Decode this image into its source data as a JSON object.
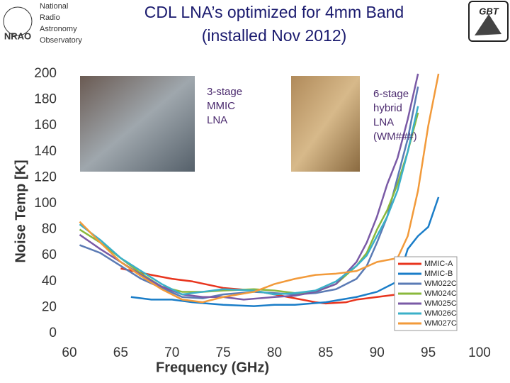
{
  "logos": {
    "nrao_lines": [
      "National",
      "Radio",
      "Astronomy",
      "Observatory"
    ],
    "nrao_abbr": "NRAO",
    "gbt": "GBT"
  },
  "chart_data": {
    "type": "line",
    "title": "CDL LNA’s optimized for 4mm Band",
    "subtitle": "(installed Nov 2012)",
    "x_label": "Frequency (GHz)",
    "y_label": "Noise Temp [K]",
    "xlim": [
      60,
      100
    ],
    "xticks": [
      60,
      65,
      70,
      75,
      80,
      85,
      90,
      95,
      100
    ],
    "ylim": [
      0,
      200
    ],
    "yticks": [
      0,
      20,
      40,
      60,
      80,
      100,
      120,
      140,
      160,
      180,
      200
    ],
    "grid": false,
    "legend": "lower right",
    "annotations": [
      [
        "3-stage",
        "MMIC",
        "LNA"
      ],
      [
        "6-stage",
        "hybrid",
        "LNA",
        "(WM###)"
      ]
    ],
    "series": [
      {
        "name": "MMIC-A",
        "color": "#e8351e",
        "x": [
          65,
          68,
          70,
          72,
          75,
          78,
          80,
          82,
          84,
          85,
          87,
          88,
          90,
          92,
          94
        ],
        "values": [
          50,
          45,
          42,
          40,
          35,
          33,
          30,
          27,
          24,
          23,
          24,
          26,
          28,
          30,
          32
        ]
      },
      {
        "name": "MMIC-B",
        "color": "#1a7dc8",
        "x": [
          66,
          68,
          70,
          72,
          75,
          78,
          80,
          82,
          85,
          88,
          90,
          92,
          93,
          94,
          95,
          96
        ],
        "values": [
          28,
          26,
          26,
          24,
          22,
          21,
          22,
          22,
          24,
          28,
          32,
          40,
          65,
          75,
          82,
          105
        ]
      },
      {
        "name": "WM022C",
        "color": "#5b7bb5",
        "x": [
          61,
          63,
          65,
          67,
          69,
          71,
          73,
          75,
          78,
          80,
          82,
          84,
          86,
          88,
          89,
          90,
          91,
          92,
          93,
          94
        ],
        "values": [
          68,
          62,
          52,
          42,
          35,
          28,
          27,
          30,
          32,
          31,
          30,
          31,
          34,
          42,
          52,
          70,
          90,
          120,
          150,
          190
        ]
      },
      {
        "name": "WM024C",
        "color": "#8ab83c",
        "x": [
          61,
          63,
          65,
          67,
          69,
          71,
          73,
          75,
          78,
          80,
          82,
          84,
          86,
          88,
          89,
          90,
          91,
          92,
          93,
          94
        ],
        "values": [
          80,
          70,
          58,
          46,
          36,
          32,
          32,
          33,
          34,
          33,
          31,
          32,
          38,
          52,
          62,
          80,
          95,
          115,
          140,
          170
        ]
      },
      {
        "name": "WM025C",
        "color": "#7a5aa6",
        "x": [
          61,
          63,
          65,
          67,
          69,
          71,
          73,
          75,
          77,
          80,
          82,
          84,
          86,
          88,
          89,
          90,
          91,
          92,
          93,
          94
        ],
        "values": [
          76,
          65,
          55,
          45,
          36,
          30,
          28,
          28,
          26,
          28,
          29,
          32,
          38,
          55,
          70,
          90,
          115,
          135,
          165,
          200
        ]
      },
      {
        "name": "WM026C",
        "color": "#3bb0c8",
        "x": [
          61,
          63,
          65,
          67,
          69,
          71,
          73,
          75,
          78,
          80,
          82,
          84,
          86,
          88,
          89,
          90,
          91,
          92,
          93,
          94
        ],
        "values": [
          84,
          72,
          58,
          48,
          38,
          30,
          32,
          34,
          33,
          30,
          31,
          33,
          40,
          52,
          60,
          75,
          90,
          110,
          140,
          175
        ]
      },
      {
        "name": "WM027C",
        "color": "#f29a3a",
        "x": [
          61,
          63,
          65,
          67,
          69,
          71,
          73,
          75,
          78,
          80,
          82,
          84,
          86,
          88,
          90,
          92,
          93,
          94,
          95,
          96
        ],
        "values": [
          86,
          70,
          55,
          44,
          34,
          26,
          24,
          28,
          32,
          38,
          42,
          45,
          46,
          48,
          55,
          58,
          75,
          110,
          160,
          200
        ]
      }
    ]
  }
}
